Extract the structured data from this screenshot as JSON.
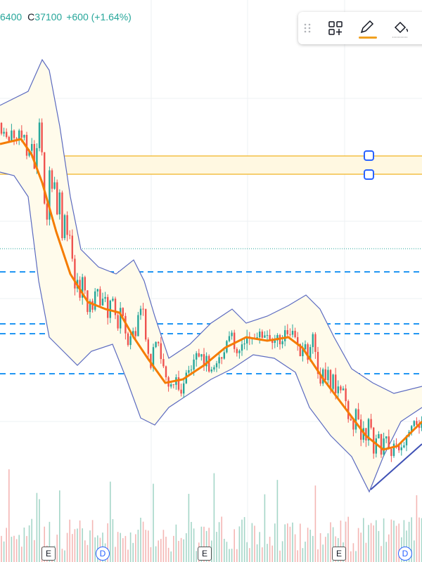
{
  "header": {
    "open_tail": "6400",
    "close_label": "C",
    "close": "37100",
    "change": "+600 (+1.64%)"
  },
  "markers": [
    {
      "label": "E"
    },
    {
      "label": "D"
    },
    {
      "label": "E"
    },
    {
      "label": "E"
    },
    {
      "label": "D"
    }
  ]
}
